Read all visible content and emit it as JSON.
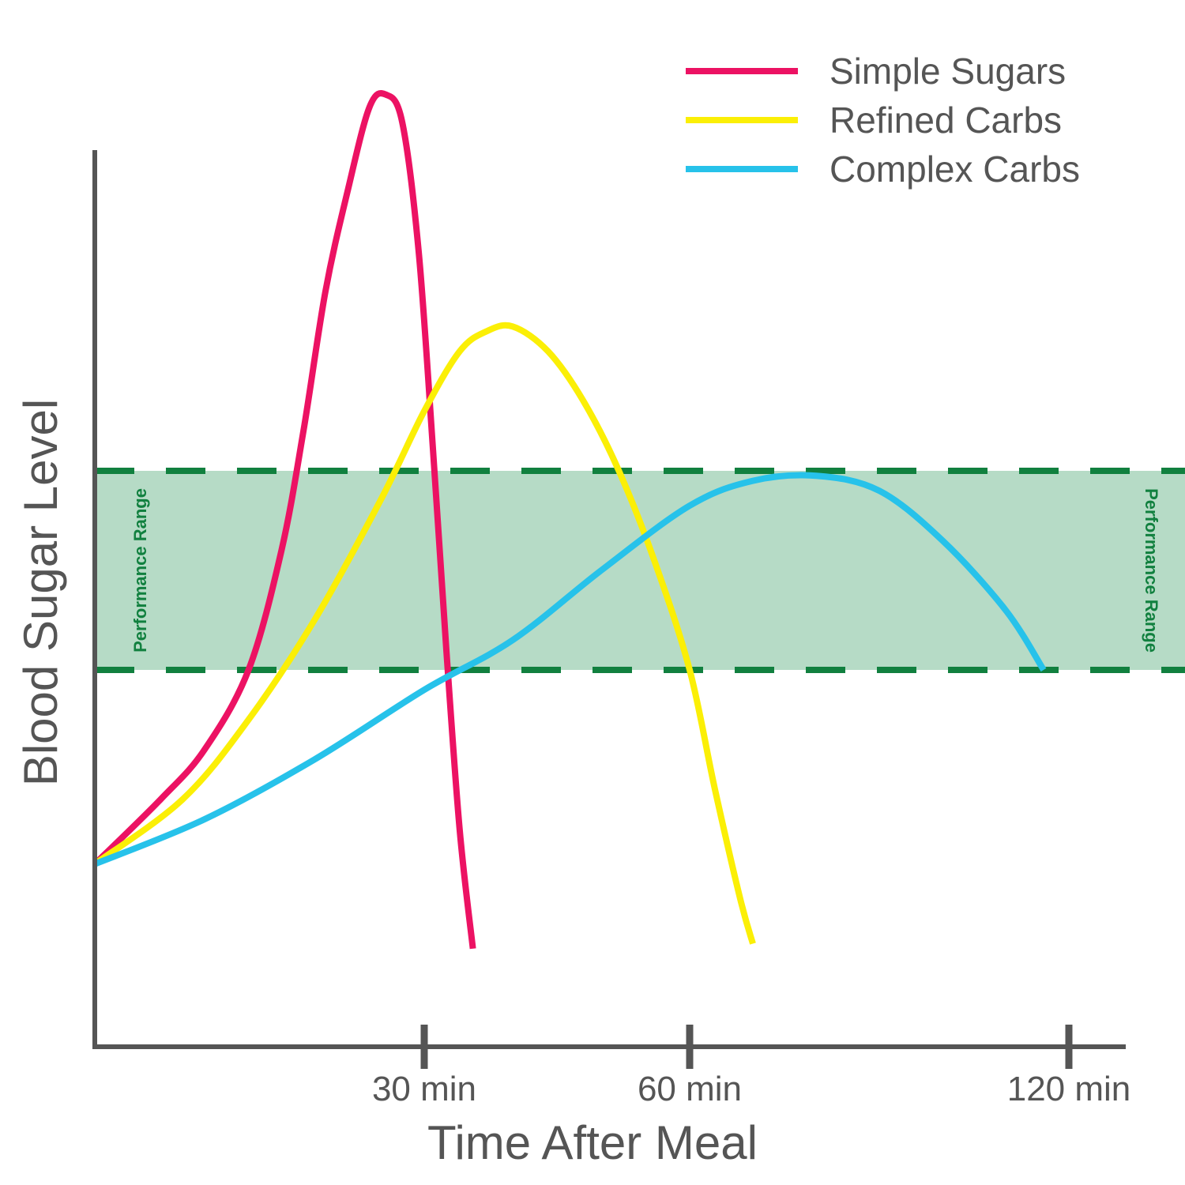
{
  "chart_data": {
    "type": "line",
    "title": "",
    "xlabel": "Time After Meal",
    "ylabel": "Blood Sugar Level",
    "x_ticks": [
      {
        "value": 30,
        "label": "30 min"
      },
      {
        "value": 60,
        "label": "60 min"
      },
      {
        "value": 120,
        "label": "120 min"
      }
    ],
    "band": {
      "label": "Performance Range",
      "y_low": 40,
      "y_high": 60,
      "color": "#b6dbc6",
      "line_color": "#11803f"
    },
    "ylim": [
      0,
      100
    ],
    "legend_position": "top-right",
    "grid": false,
    "series": [
      {
        "name": "Simple Sugars",
        "color": "#ec1263",
        "points": [
          [
            0,
            20.5
          ],
          [
            6,
            27
          ],
          [
            10,
            32
          ],
          [
            14,
            40
          ],
          [
            17,
            52
          ],
          [
            19,
            64
          ],
          [
            21,
            78
          ],
          [
            23,
            88
          ],
          [
            25,
            96.5
          ],
          [
            26.5,
            97.8
          ],
          [
            28,
            95
          ],
          [
            29.5,
            82
          ],
          [
            31,
            62
          ],
          [
            32.5,
            42
          ],
          [
            34,
            24
          ],
          [
            35.5,
            12
          ]
        ]
      },
      {
        "name": "Refined Carbs",
        "color": "#fbef06",
        "points": [
          [
            0,
            20.5
          ],
          [
            8,
            27
          ],
          [
            14,
            35
          ],
          [
            20,
            45
          ],
          [
            26,
            57
          ],
          [
            30,
            66
          ],
          [
            34,
            72
          ],
          [
            37,
            74
          ],
          [
            40,
            74.5
          ],
          [
            44,
            72
          ],
          [
            48,
            67
          ],
          [
            52,
            60
          ],
          [
            56,
            51
          ],
          [
            60,
            40
          ],
          [
            64,
            28
          ],
          [
            68,
            17
          ],
          [
            70,
            12.5
          ]
        ]
      },
      {
        "name": "Complex Carbs",
        "color": "#27c2ea",
        "points": [
          [
            0,
            20.5
          ],
          [
            10,
            25
          ],
          [
            20,
            31
          ],
          [
            30,
            38
          ],
          [
            40,
            43
          ],
          [
            50,
            50
          ],
          [
            60,
            56.5
          ],
          [
            70,
            59
          ],
          [
            80,
            59.5
          ],
          [
            90,
            58
          ],
          [
            100,
            53
          ],
          [
            110,
            46
          ],
          [
            116,
            40
          ]
        ]
      }
    ]
  }
}
